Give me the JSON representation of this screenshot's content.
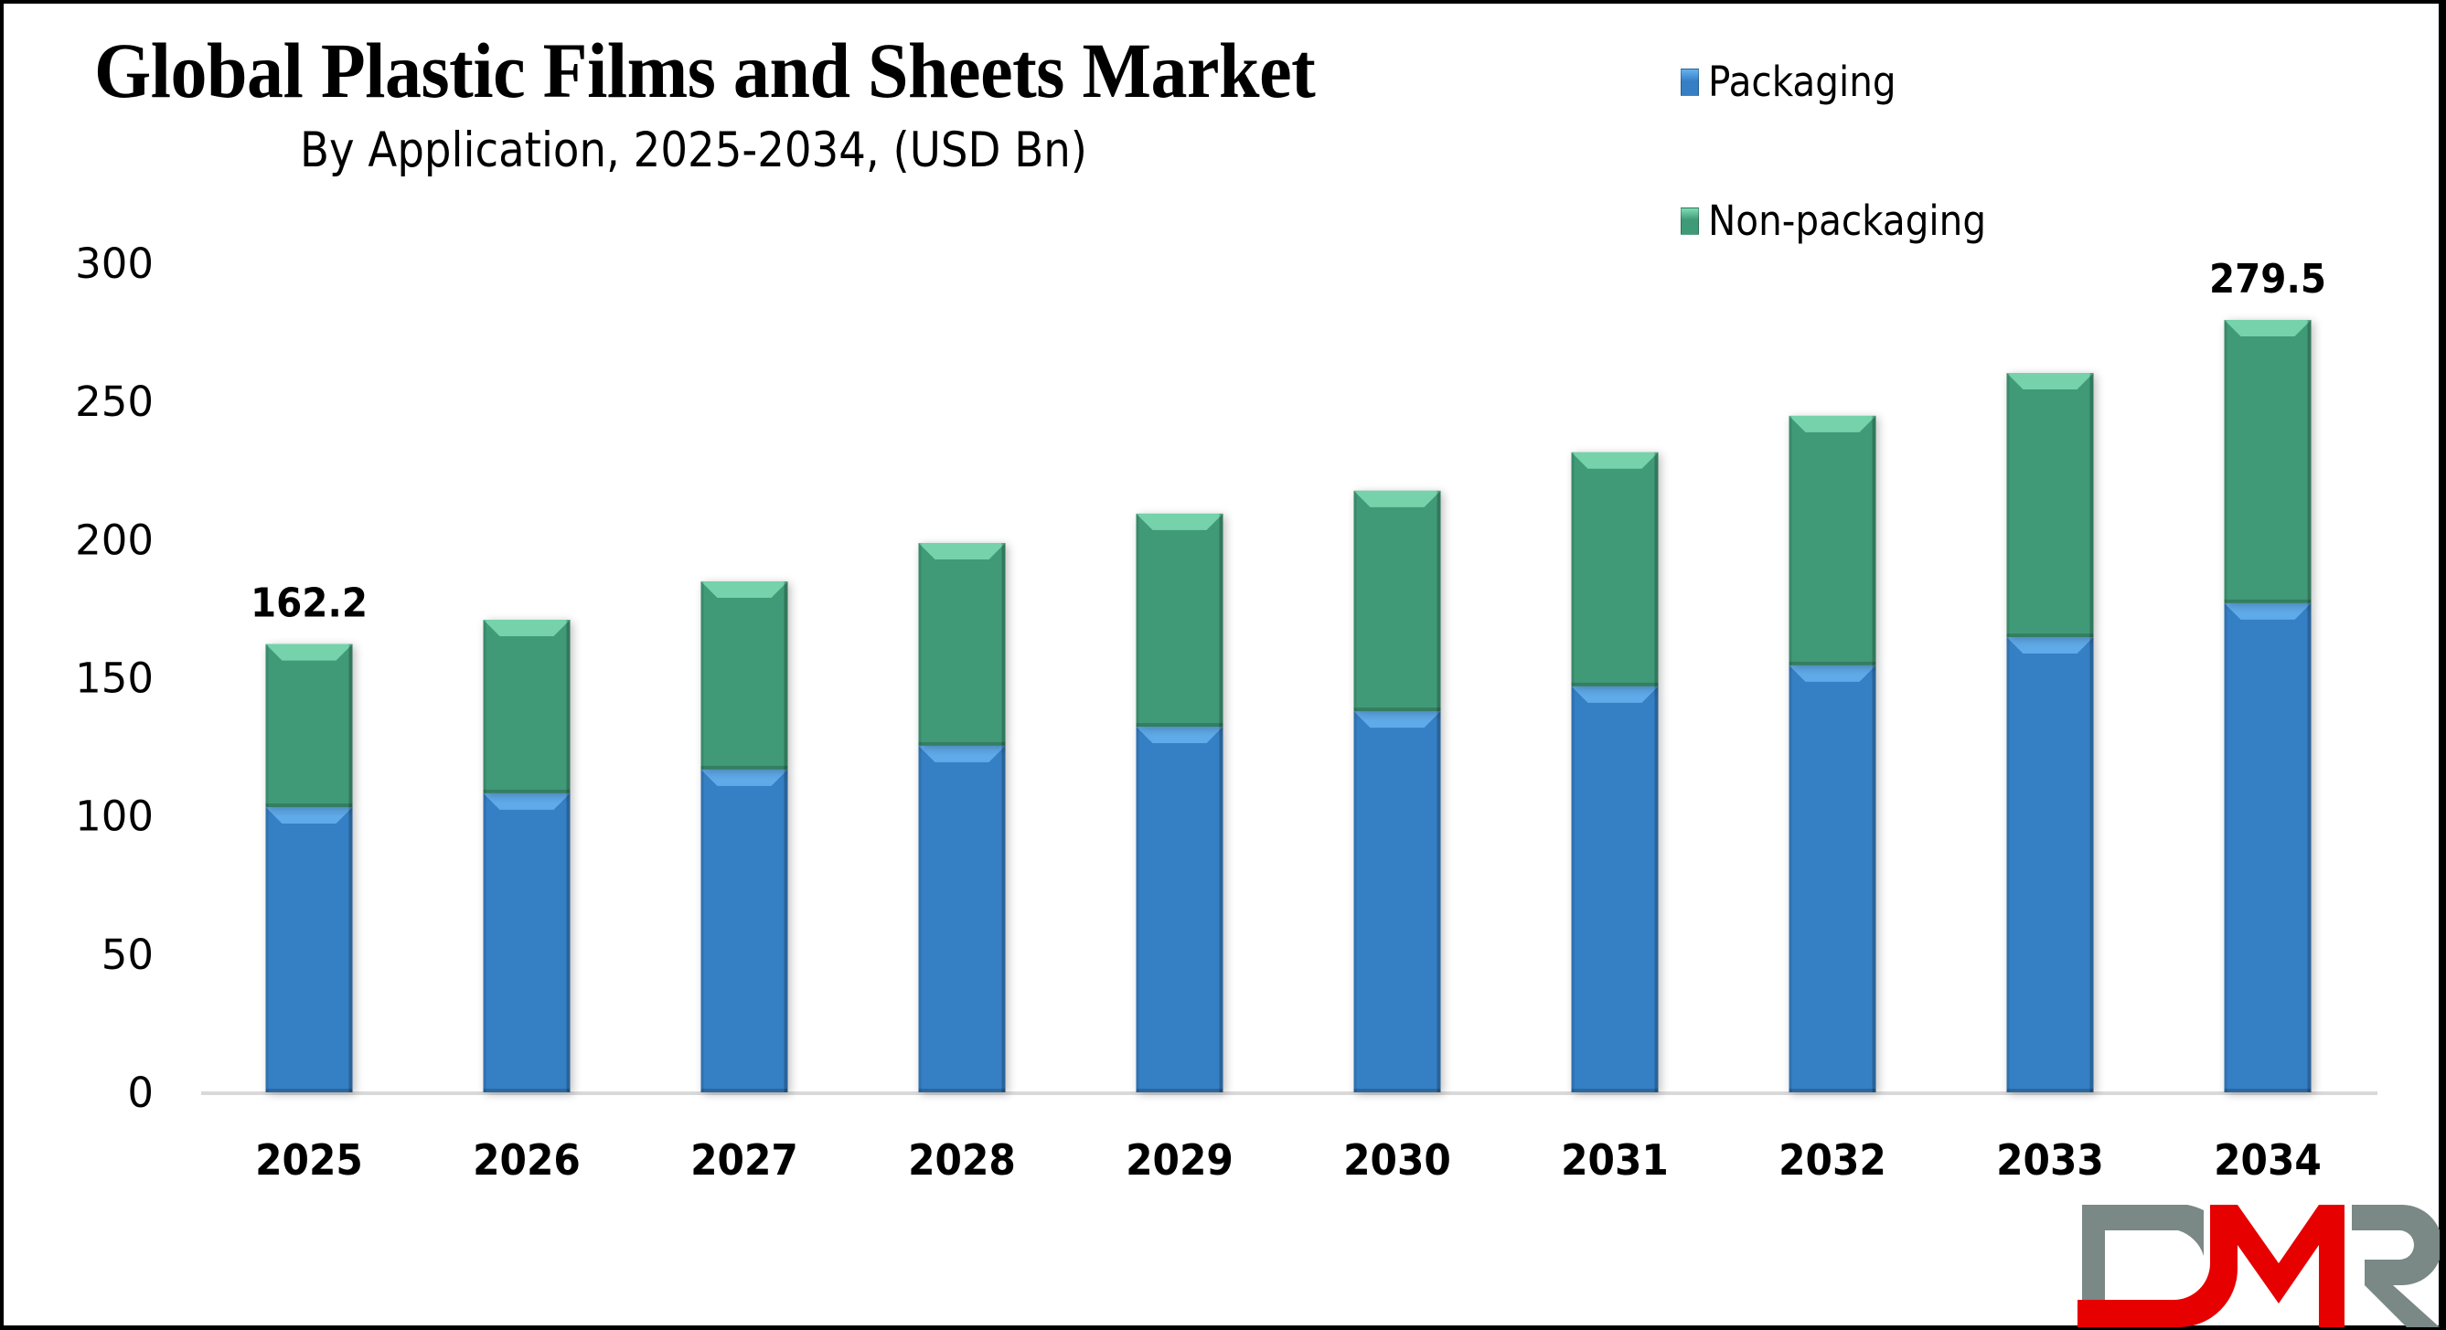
{
  "header": {
    "title": "Global Plastic Films and Sheets Market",
    "subtitle": "By Application, 2025-2034, (USD Bn)"
  },
  "legend": [
    {
      "label": "Packaging",
      "color": "#367fc4",
      "highlight": "#66b2f0"
    },
    {
      "label": "Non-packaging",
      "color": "#3f9a77",
      "highlight": "#7fdcb4"
    }
  ],
  "logo": {
    "text": "DMR",
    "colors": {
      "d": "#7a8886",
      "m": "#e60000",
      "r": "#7a8886"
    }
  },
  "chart_data": {
    "type": "bar",
    "stacked": true,
    "title": "Global Plastic Films and Sheets Market",
    "subtitle": "By Application, 2025-2034, (USD Bn)",
    "xlabel": "",
    "ylabel": "",
    "categories": [
      "2025",
      "2026",
      "2027",
      "2028",
      "2029",
      "2030",
      "2031",
      "2032",
      "2033",
      "2034"
    ],
    "series": [
      {
        "name": "Packaging",
        "values": [
          103.2,
          108.2,
          116.8,
          125.4,
          132.3,
          137.9,
          146.9,
          154.5,
          164.7,
          177.0
        ]
      },
      {
        "name": "Non-packaging",
        "values": [
          59.0,
          62.8,
          68.1,
          73.4,
          77.1,
          79.8,
          84.7,
          90.3,
          95.6,
          102.5
        ]
      }
    ],
    "data_labels": [
      {
        "category": "2025",
        "text": "162.2"
      },
      {
        "category": "2034",
        "text": "279.5"
      }
    ],
    "ylim": [
      0,
      300
    ],
    "yticks": [
      0,
      50,
      100,
      150,
      200,
      250,
      300
    ],
    "grid": false,
    "legend_position": "top-right"
  }
}
